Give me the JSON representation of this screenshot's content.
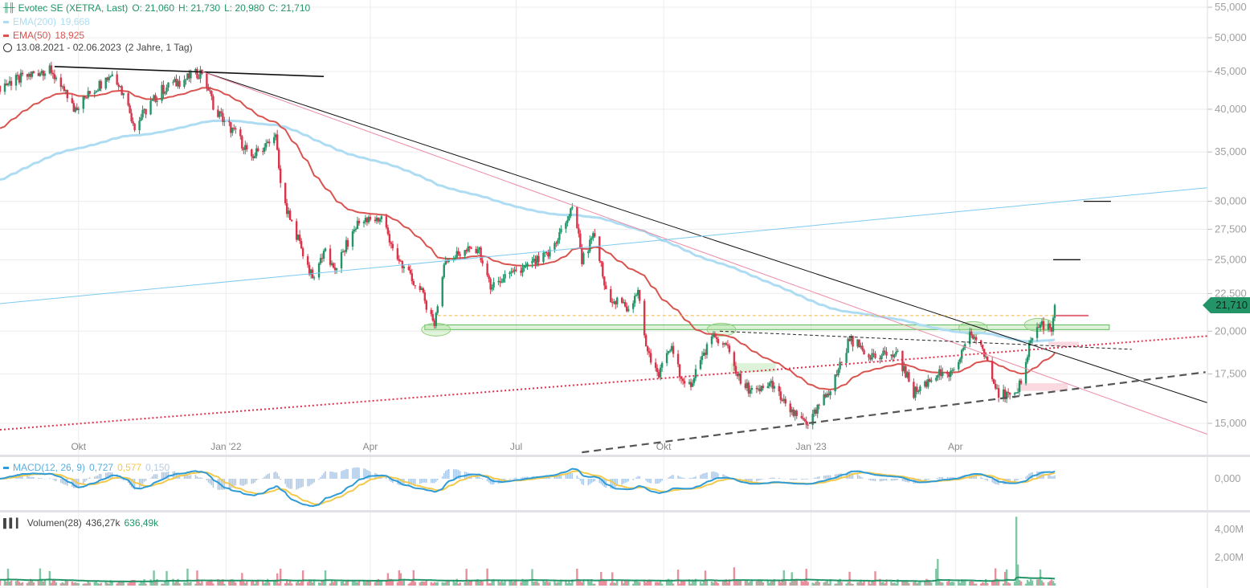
{
  "legend": {
    "title": "Evotec SE (XETRA, Last)",
    "open": "O: 21,060",
    "high": "H: 21,730",
    "low": "L: 20,980",
    "close": "C: 21,710",
    "ema200": "EMA(200)",
    "ema200_value": "19,668",
    "ema50": "EMA(50)",
    "ema50_value": "18,925",
    "range": "13.08.2021 - 02.06.2023",
    "range_note": "(2 Jahre, 1 Tag)",
    "macd": "MACD(12, 26, 9)",
    "macd_value": "0,727",
    "macd_signal": "0,577",
    "macd_hist": "0,150",
    "volume": "Volumen(28)",
    "volume_value": "436,27k",
    "volume_avg": "636,49k"
  },
  "last_price_label": "21,710",
  "colors": {
    "up": "#239467",
    "down": "#d9344a",
    "ema200": "#aedcf3",
    "ema50": "#d9534f",
    "macd": "#2f9bd6",
    "signal": "#f2c94c",
    "accent": "#239467"
  },
  "chart_data": {
    "type": "candlestick",
    "title": "Evotec SE (XETRA, Last)",
    "start_date": "2021-08-13",
    "end_date": "2023-06-02",
    "y_scale": "log",
    "ylim": [
      14000,
      56000
    ],
    "y_ticks": [
      {
        "v": 15000,
        "label": "15,000"
      },
      {
        "v": 17500,
        "label": "17,500"
      },
      {
        "v": 20000,
        "label": "20,000"
      },
      {
        "v": 22500,
        "label": "22,500"
      },
      {
        "v": 25000,
        "label": "25,000"
      },
      {
        "v": 27500,
        "label": "27,500"
      },
      {
        "v": 30000,
        "label": "30,000"
      },
      {
        "v": 35000,
        "label": "35,000"
      },
      {
        "v": 40000,
        "label": "40,000"
      },
      {
        "v": 45000,
        "label": "45,000"
      },
      {
        "v": 50000,
        "label": "50,000"
      },
      {
        "v": 55000,
        "label": "55,000"
      }
    ],
    "x_ticks": [
      {
        "date": "2021-10-01",
        "label": "Okt"
      },
      {
        "date": "2022-01-01",
        "label": "Jan '22"
      },
      {
        "date": "2022-04-01",
        "label": "Apr"
      },
      {
        "date": "2022-07-01",
        "label": "Jul"
      },
      {
        "date": "2022-10-01",
        "label": "Okt"
      },
      {
        "date": "2023-01-01",
        "label": "Jan '23"
      },
      {
        "date": "2023-04-01",
        "label": "Apr"
      }
    ],
    "macd_ticks": [
      {
        "v": 0,
        "label": "0,000"
      }
    ],
    "volume_ticks": [
      {
        "v": 2000000,
        "label": "2,00M"
      },
      {
        "v": 4000000,
        "label": "4,00M"
      }
    ],
    "ema_seed": {
      "ema200": 32000,
      "ema50": 37500
    },
    "close_path": [
      [
        "2021-08-13",
        43000
      ],
      [
        "2021-09-13",
        45500
      ],
      [
        "2021-09-28",
        40000
      ],
      [
        "2021-10-23",
        45000
      ],
      [
        "2021-11-05",
        38000
      ],
      [
        "2021-11-22",
        42500
      ],
      [
        "2021-12-17",
        45000
      ],
      [
        "2021-12-25",
        40000
      ],
      [
        "2022-01-07",
        37000
      ],
      [
        "2022-01-17",
        34500
      ],
      [
        "2022-02-01",
        36500
      ],
      [
        "2022-02-05",
        30000
      ],
      [
        "2022-02-14",
        27000
      ],
      [
        "2022-02-24",
        23500
      ],
      [
        "2022-03-04",
        26000
      ],
      [
        "2022-03-09",
        24000
      ],
      [
        "2022-03-24",
        28000
      ],
      [
        "2022-04-08",
        28500
      ],
      [
        "2022-04-18",
        25000
      ],
      [
        "2022-05-03",
        22500
      ],
      [
        "2022-05-11",
        20500
      ],
      [
        "2022-05-18",
        25000
      ],
      [
        "2022-06-07",
        26000
      ],
      [
        "2022-06-15",
        23000
      ],
      [
        "2022-07-02",
        24000
      ],
      [
        "2022-07-22",
        25500
      ],
      [
        "2022-08-06",
        29500
      ],
      [
        "2022-08-11",
        25000
      ],
      [
        "2022-08-19",
        27000
      ],
      [
        "2022-08-26",
        22500
      ],
      [
        "2022-09-08",
        21500
      ],
      [
        "2022-09-15",
        22500
      ],
      [
        "2022-09-20",
        19000
      ],
      [
        "2022-09-28",
        17500
      ],
      [
        "2022-10-06",
        19000
      ],
      [
        "2022-10-15",
        16500
      ],
      [
        "2022-10-31",
        19500
      ],
      [
        "2022-11-10",
        19000
      ],
      [
        "2022-11-18",
        17000
      ],
      [
        "2022-11-28",
        16500
      ],
      [
        "2022-12-08",
        17000
      ],
      [
        "2022-12-18",
        15500
      ],
      [
        "2022-12-31",
        15000
      ],
      [
        "2023-01-15",
        17000
      ],
      [
        "2023-01-25",
        19500
      ],
      [
        "2023-02-09",
        18500
      ],
      [
        "2023-02-24",
        18500
      ],
      [
        "2023-03-06",
        16500
      ],
      [
        "2023-03-21",
        17500
      ],
      [
        "2023-03-31",
        17500
      ],
      [
        "2023-04-10",
        20000
      ],
      [
        "2023-04-20",
        18500
      ],
      [
        "2023-04-28",
        16500
      ],
      [
        "2023-05-08",
        16200
      ],
      [
        "2023-05-13",
        17500
      ],
      [
        "2023-05-18",
        19500
      ],
      [
        "2023-05-25",
        20500
      ],
      [
        "2023-05-31",
        20000
      ],
      [
        "2023-06-02",
        21710
      ]
    ],
    "volume_base": 300000,
    "volume_spikes": [
      [
        "2022-02-05",
        2200000
      ],
      [
        "2023-03-21",
        1900000
      ],
      [
        "2023-05-09",
        4900000
      ],
      [
        "2023-05-10",
        1500000
      ],
      [
        "2022-08-08",
        1200000
      ],
      [
        "2022-11-14",
        1300000
      ]
    ],
    "drawings": {
      "trendlines": [
        {
          "name": "black-thick-trendline",
          "from": [
            "2021-09-16",
            45700
          ],
          "to": [
            "2022-03-03",
            44300
          ],
          "color": "#111",
          "width": 1.6,
          "dash": ""
        },
        {
          "name": "black-downtrend-line",
          "from": [
            "2021-12-17",
            45000
          ],
          "to": [
            "2023-09-05",
            16000
          ],
          "color": "#111",
          "width": 1,
          "dash": ""
        },
        {
          "name": "pink-downtrend-line",
          "from": [
            "2021-12-17",
            45000
          ],
          "to": [
            "2023-09-05",
            14500
          ],
          "color": "#ec8aa4",
          "width": 1,
          "dash": ""
        },
        {
          "name": "blue-uptrend-line",
          "from": [
            "2021-08-13",
            21800
          ],
          "to": [
            "2023-09-05",
            31300
          ],
          "color": "#7fcaf0",
          "width": 1,
          "dash": ""
        },
        {
          "name": "red-dotted-support-line",
          "from": [
            "2021-08-13",
            14700
          ],
          "to": [
            "2023-09-05",
            19700
          ],
          "color": "#e0304e",
          "width": 2,
          "dash": "2,3"
        },
        {
          "name": "gray-dashed-support-line",
          "from": [
            "2022-08-11",
            13700
          ],
          "to": [
            "2023-09-04",
            17600
          ],
          "color": "#555",
          "width": 2.2,
          "dash": "9,6"
        },
        {
          "name": "black-dashed-line",
          "from": [
            "2022-11-05",
            20000
          ],
          "to": [
            "2023-07-20",
            18900
          ],
          "color": "#222",
          "width": 1,
          "dash": "4,3"
        },
        {
          "name": "orange-dashed-line",
          "from": [
            "2022-05-13",
            21000
          ],
          "to": [
            "2023-06-06",
            21000
          ],
          "color": "#f5b545",
          "width": 1,
          "dash": "4,3"
        },
        {
          "name": "black-level-30000",
          "from": [
            "2023-06-20",
            30000
          ],
          "to": [
            "2023-07-07",
            30000
          ],
          "color": "#111",
          "width": 1.3,
          "dash": ""
        },
        {
          "name": "black-level-25000",
          "from": [
            "2023-06-01",
            25000
          ],
          "to": [
            "2023-06-18",
            25000
          ],
          "color": "#111",
          "width": 1.3,
          "dash": ""
        },
        {
          "name": "red-level-21000",
          "from": [
            "2023-06-02",
            21000
          ],
          "to": [
            "2023-06-23",
            21000
          ],
          "color": "#e06a7a",
          "width": 2,
          "dash": ""
        }
      ],
      "zones": [
        {
          "name": "green-support-zone",
          "from": [
            "2022-05-05",
            20400
          ],
          "to": [
            "2023-07-06",
            20100
          ],
          "fill": "rgba(160,220,150,0.35)",
          "stroke": "#5cb85c"
        },
        {
          "name": "green-zone-small",
          "from": [
            "2022-11-12",
            18100
          ],
          "to": [
            "2022-12-10",
            17600
          ],
          "fill": "rgba(170,225,160,0.4)",
          "stroke": "none"
        },
        {
          "name": "pink-zone-lower",
          "from": [
            "2023-05-09",
            17000
          ],
          "to": [
            "2023-06-10",
            16600
          ],
          "fill": "rgba(245,180,195,0.5)",
          "stroke": "none"
        },
        {
          "name": "pink-zone-upper",
          "from": [
            "2023-05-29",
            19350
          ],
          "to": [
            "2023-06-17",
            19100
          ],
          "fill": "rgba(245,180,195,0.5)",
          "stroke": "none"
        }
      ],
      "ellipses": [
        {
          "name": "highlight-ellipse",
          "at": [
            "2022-05-12",
            20100
          ]
        },
        {
          "name": "highlight-ellipse",
          "at": [
            "2022-11-06",
            20100
          ]
        },
        {
          "name": "highlight-ellipse",
          "at": [
            "2023-04-12",
            20200
          ]
        },
        {
          "name": "highlight-ellipse",
          "at": [
            "2023-05-23",
            20400
          ]
        }
      ]
    }
  }
}
